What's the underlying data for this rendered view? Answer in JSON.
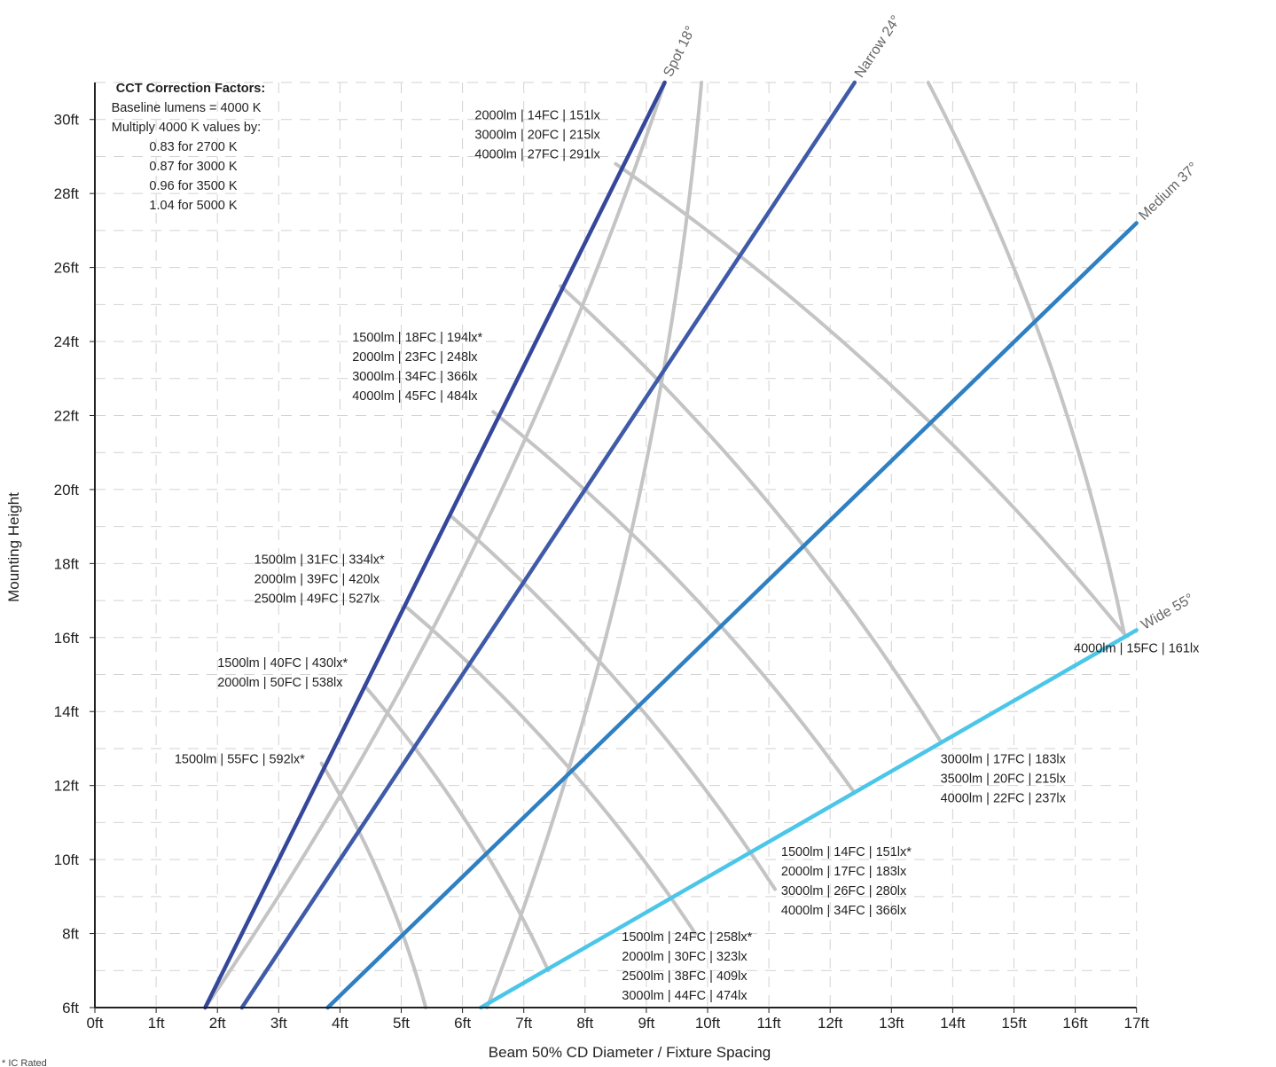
{
  "chart_data": {
    "type": "line",
    "xlabel": "Beam 50% CD Diameter / Fixture Spacing",
    "ylabel": "Mounting Height",
    "xlim": [
      0,
      17
    ],
    "ylim": [
      6,
      31
    ],
    "x_ticks": [
      "0ft",
      "1ft",
      "2ft",
      "3ft",
      "4ft",
      "5ft",
      "6ft",
      "7ft",
      "8ft",
      "9ft",
      "10ft",
      "11ft",
      "12ft",
      "13ft",
      "14ft",
      "15ft",
      "16ft",
      "17ft"
    ],
    "y_ticks": [
      "6ft",
      "8ft",
      "10ft",
      "12ft",
      "14ft",
      "16ft",
      "18ft",
      "20ft",
      "22ft",
      "24ft",
      "26ft",
      "28ft",
      "30ft"
    ],
    "grid": true,
    "series": [
      {
        "name": "Spot 18°",
        "color": "#34479b",
        "points": [
          [
            1.8,
            6
          ],
          [
            9.3,
            31
          ]
        ]
      },
      {
        "name": "Narrow 24°",
        "color": "#3f5ba8",
        "points": [
          [
            2.4,
            6
          ],
          [
            12.4,
            31
          ]
        ]
      },
      {
        "name": "Medium 37°",
        "color": "#2f80c2",
        "points": [
          [
            3.8,
            6
          ],
          [
            17.0,
            27.2
          ]
        ]
      },
      {
        "name": "Wide 55°",
        "color": "#4cc6e8",
        "points": [
          [
            6.3,
            6
          ],
          [
            17.0,
            16.2
          ]
        ]
      }
    ],
    "iso_curves": {
      "color": "#c4c4c4",
      "curves": [
        [
          [
            1.8,
            6
          ],
          [
            9.3,
            31
          ]
        ],
        [
          [
            5.4,
            6
          ],
          [
            3.7,
            12.6
          ]
        ],
        [
          [
            7.4,
            7
          ],
          [
            4.4,
            14.7
          ]
        ],
        [
          [
            9.8,
            8
          ],
          [
            5.1,
            16.8
          ]
        ],
        [
          [
            11.1,
            9.2
          ],
          [
            5.8,
            19.3
          ]
        ],
        [
          [
            12.4,
            11.8
          ],
          [
            6.5,
            22.1
          ]
        ],
        [
          [
            13.8,
            13.2
          ],
          [
            7.6,
            25.5
          ]
        ],
        [
          [
            16.8,
            16.1
          ],
          [
            8.5,
            28.8
          ]
        ],
        [
          [
            6.4,
            6
          ],
          [
            9.9,
            31
          ]
        ],
        [
          [
            16.8,
            16.1
          ],
          [
            13.6,
            31
          ]
        ]
      ]
    },
    "annotations": [
      {
        "x": 6.2,
        "y": 30.0,
        "lines": [
          "2000lm | 14FC | 151lx",
          "3000lm | 20FC | 215lx",
          "4000lm | 27FC | 291lx"
        ]
      },
      {
        "x": 4.2,
        "y": 24.0,
        "lines": [
          "1500lm | 18FC | 194lx*",
          "2000lm | 23FC | 248lx",
          "3000lm | 34FC | 366lx",
          "4000lm | 45FC | 484lx"
        ]
      },
      {
        "x": 2.6,
        "y": 18.0,
        "lines": [
          "1500lm | 31FC | 334lx*",
          "2000lm | 39FC | 420lx",
          "2500lm | 49FC | 527lx"
        ]
      },
      {
        "x": 2.0,
        "y": 15.2,
        "lines": [
          "1500lm | 40FC | 430lx*",
          "2000lm | 50FC | 538lx"
        ]
      },
      {
        "x": 1.3,
        "y": 12.6,
        "lines": [
          "1500lm | 55FC | 592lx*"
        ]
      },
      {
        "x": 17.0,
        "y": 15.6,
        "lines": [
          "4000lm | 15FC | 161lx"
        ]
      },
      {
        "x": 13.8,
        "y": 12.6,
        "lines": [
          "3000lm | 17FC | 183lx",
          "3500lm | 20FC | 215lx",
          "4000lm | 22FC | 237lx"
        ]
      },
      {
        "x": 11.2,
        "y": 10.1,
        "lines": [
          "1500lm | 14FC | 151lx*",
          "2000lm | 17FC | 183lx",
          "3000lm | 26FC | 280lx",
          "4000lm | 34FC | 366lx"
        ]
      },
      {
        "x": 8.6,
        "y": 7.8,
        "lines": [
          "1500lm | 24FC | 258lx*",
          "2000lm | 30FC | 323lx",
          "2500lm | 38FC | 409lx",
          "3000lm | 44FC | 474lx"
        ]
      }
    ],
    "correction_box": {
      "title": "CCT Correction Factors:",
      "lines": [
        "Baseline lumens = 4000 K",
        "Multiply 4000 K values by:",
        "0.83 for 2700 K",
        "0.87 for 3000 K",
        "0.96 for 3500 K",
        "1.04 for 5000 K"
      ]
    },
    "footnote": "* IC Rated"
  }
}
